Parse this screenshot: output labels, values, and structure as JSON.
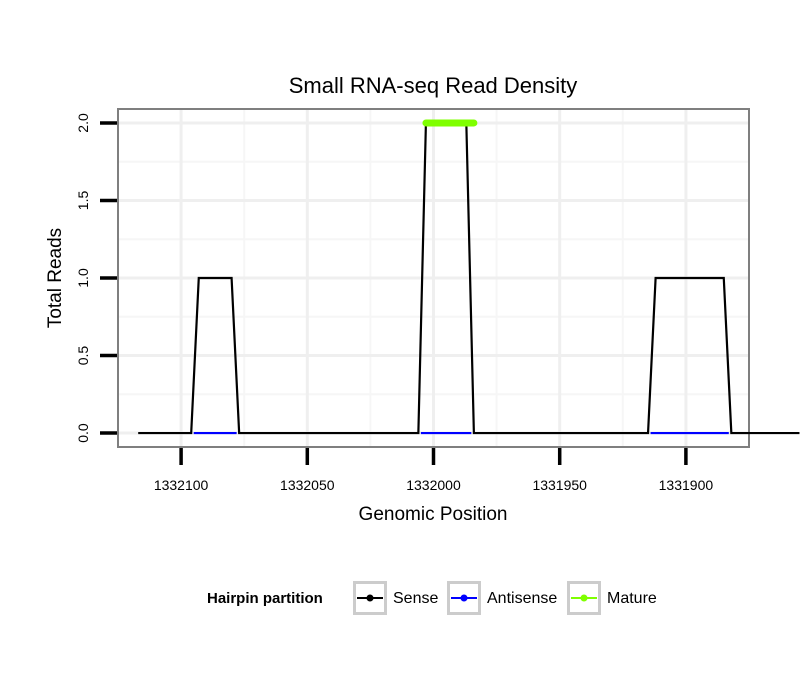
{
  "chart_data": {
    "type": "line",
    "title": "Small RNA-seq Read Density",
    "xlabel": "Genomic Position",
    "ylabel": "Total Reads",
    "x_reversed": true,
    "xlim": [
      1332125,
      1331875
    ],
    "ylim": [
      -0.09,
      2.09
    ],
    "x_ticks": [
      1332100,
      1332050,
      1332000,
      1331950,
      1331900
    ],
    "x_tick_labels": [
      "1332100",
      "1332050",
      "1332000",
      "1331950",
      "1331900"
    ],
    "y_ticks": [
      0,
      0.5,
      1,
      1.5,
      2
    ],
    "y_tick_labels": [
      "0.0",
      "0.5",
      "1.0",
      "1.5",
      "2.0"
    ],
    "grid": true,
    "legend": {
      "title": "Hairpin partition",
      "position": "bottom",
      "entries": [
        {
          "label": "Sense",
          "color": "#000000"
        },
        {
          "label": "Antisense",
          "color": "#0000ff"
        },
        {
          "label": "Mature",
          "color": "#7fff00"
        }
      ]
    },
    "series": [
      {
        "name": "Sense",
        "color": "#000000",
        "x": [
          1332117,
          1332096,
          1332093,
          1332080,
          1332077,
          1332006,
          1332003,
          1331987,
          1331984,
          1331915,
          1331912,
          1331885,
          1331882,
          1331855
        ],
        "y": [
          0,
          0,
          1,
          1,
          0,
          0,
          2,
          2,
          0,
          0,
          1,
          1,
          0,
          0
        ]
      },
      {
        "name": "Antisense",
        "segments": [
          {
            "x": [
              1332095,
              1332078
            ],
            "y": [
              0,
              0
            ]
          },
          {
            "x": [
              1332005,
              1331985
            ],
            "y": [
              0,
              0
            ]
          },
          {
            "x": [
              1331914,
              1331883
            ],
            "y": [
              0,
              0
            ]
          }
        ],
        "color": "#0000ff"
      },
      {
        "name": "Mature",
        "color": "#7fff00",
        "x": [
          1332003,
          1331984
        ],
        "y": [
          2,
          2
        ]
      }
    ]
  }
}
